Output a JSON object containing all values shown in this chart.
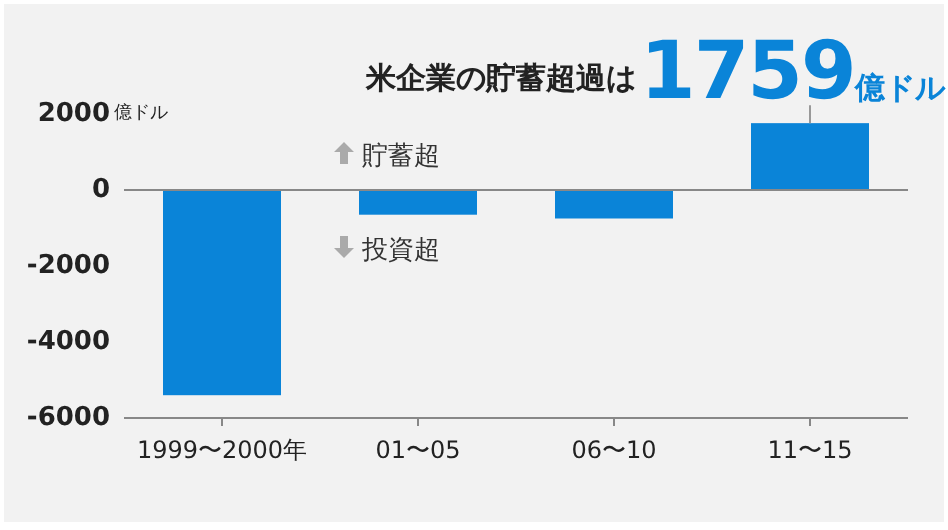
{
  "chart_data": {
    "type": "bar",
    "title": "米企業の貯蓄超過は",
    "ylabel": "億ドル",
    "categories": [
      "1999〜2000年",
      "01〜05",
      "06〜10",
      "11〜15"
    ],
    "values": [
      -5400,
      -650,
      -750,
      1759
    ],
    "color": "#0a84d8",
    "ylim": [
      -6000,
      2000
    ],
    "yticks": [
      -6000,
      -4000,
      -2000,
      0,
      2000
    ],
    "annotations": [
      {
        "text": "1759億ドル",
        "x": "11〜15",
        "y": 1759
      },
      "貯蓄超",
      "投資超"
    ]
  }
}
